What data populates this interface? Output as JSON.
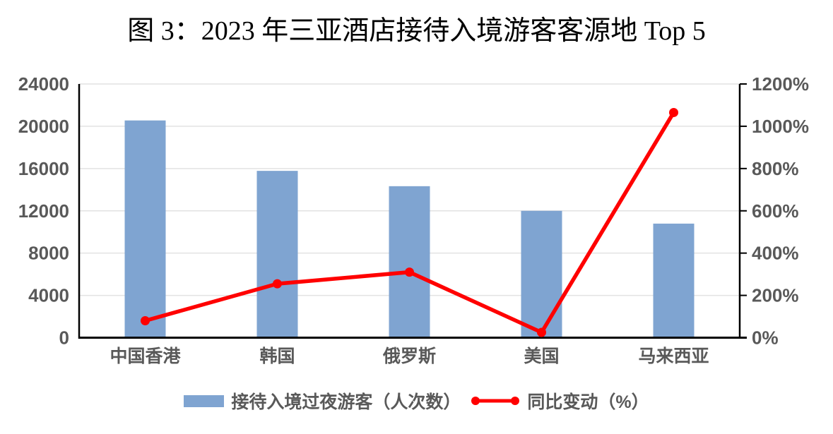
{
  "title": "图 3：2023 年三亚酒店接待入境游客客源地 Top 5",
  "chart_data": {
    "type": "combo-bar-line",
    "categories": [
      "中国香港",
      "韩国",
      "俄罗斯",
      "美国",
      "马来西亚"
    ],
    "series": [
      {
        "name": "接待入境过夜游客（人次数）",
        "chart_type": "bar",
        "axis": "left",
        "color": "#7FA4D1",
        "values": [
          20550,
          15780,
          14330,
          12000,
          10790
        ]
      },
      {
        "name": "同比变动（%）",
        "chart_type": "line",
        "axis": "right",
        "color": "#FF0000",
        "values": [
          80,
          255,
          310,
          25,
          1065
        ]
      }
    ],
    "left_axis": {
      "min": 0,
      "max": 24000,
      "step": 4000,
      "tick_labels": [
        "0",
        "4000",
        "8000",
        "12000",
        "16000",
        "20000",
        "24000"
      ]
    },
    "right_axis": {
      "min": 0,
      "max": 1200,
      "step": 200,
      "tick_labels": [
        "0%",
        "200%",
        "400%",
        "600%",
        "800%",
        "1000%",
        "1200%"
      ]
    },
    "grid": true,
    "legend_position": "bottom"
  },
  "colors": {
    "bar": "#7FA4D1",
    "line": "#FF0000",
    "axis_text": "#595959",
    "gridline": "#E2E2E2",
    "axis_line": "#000000",
    "background": "#FFFFFF"
  }
}
